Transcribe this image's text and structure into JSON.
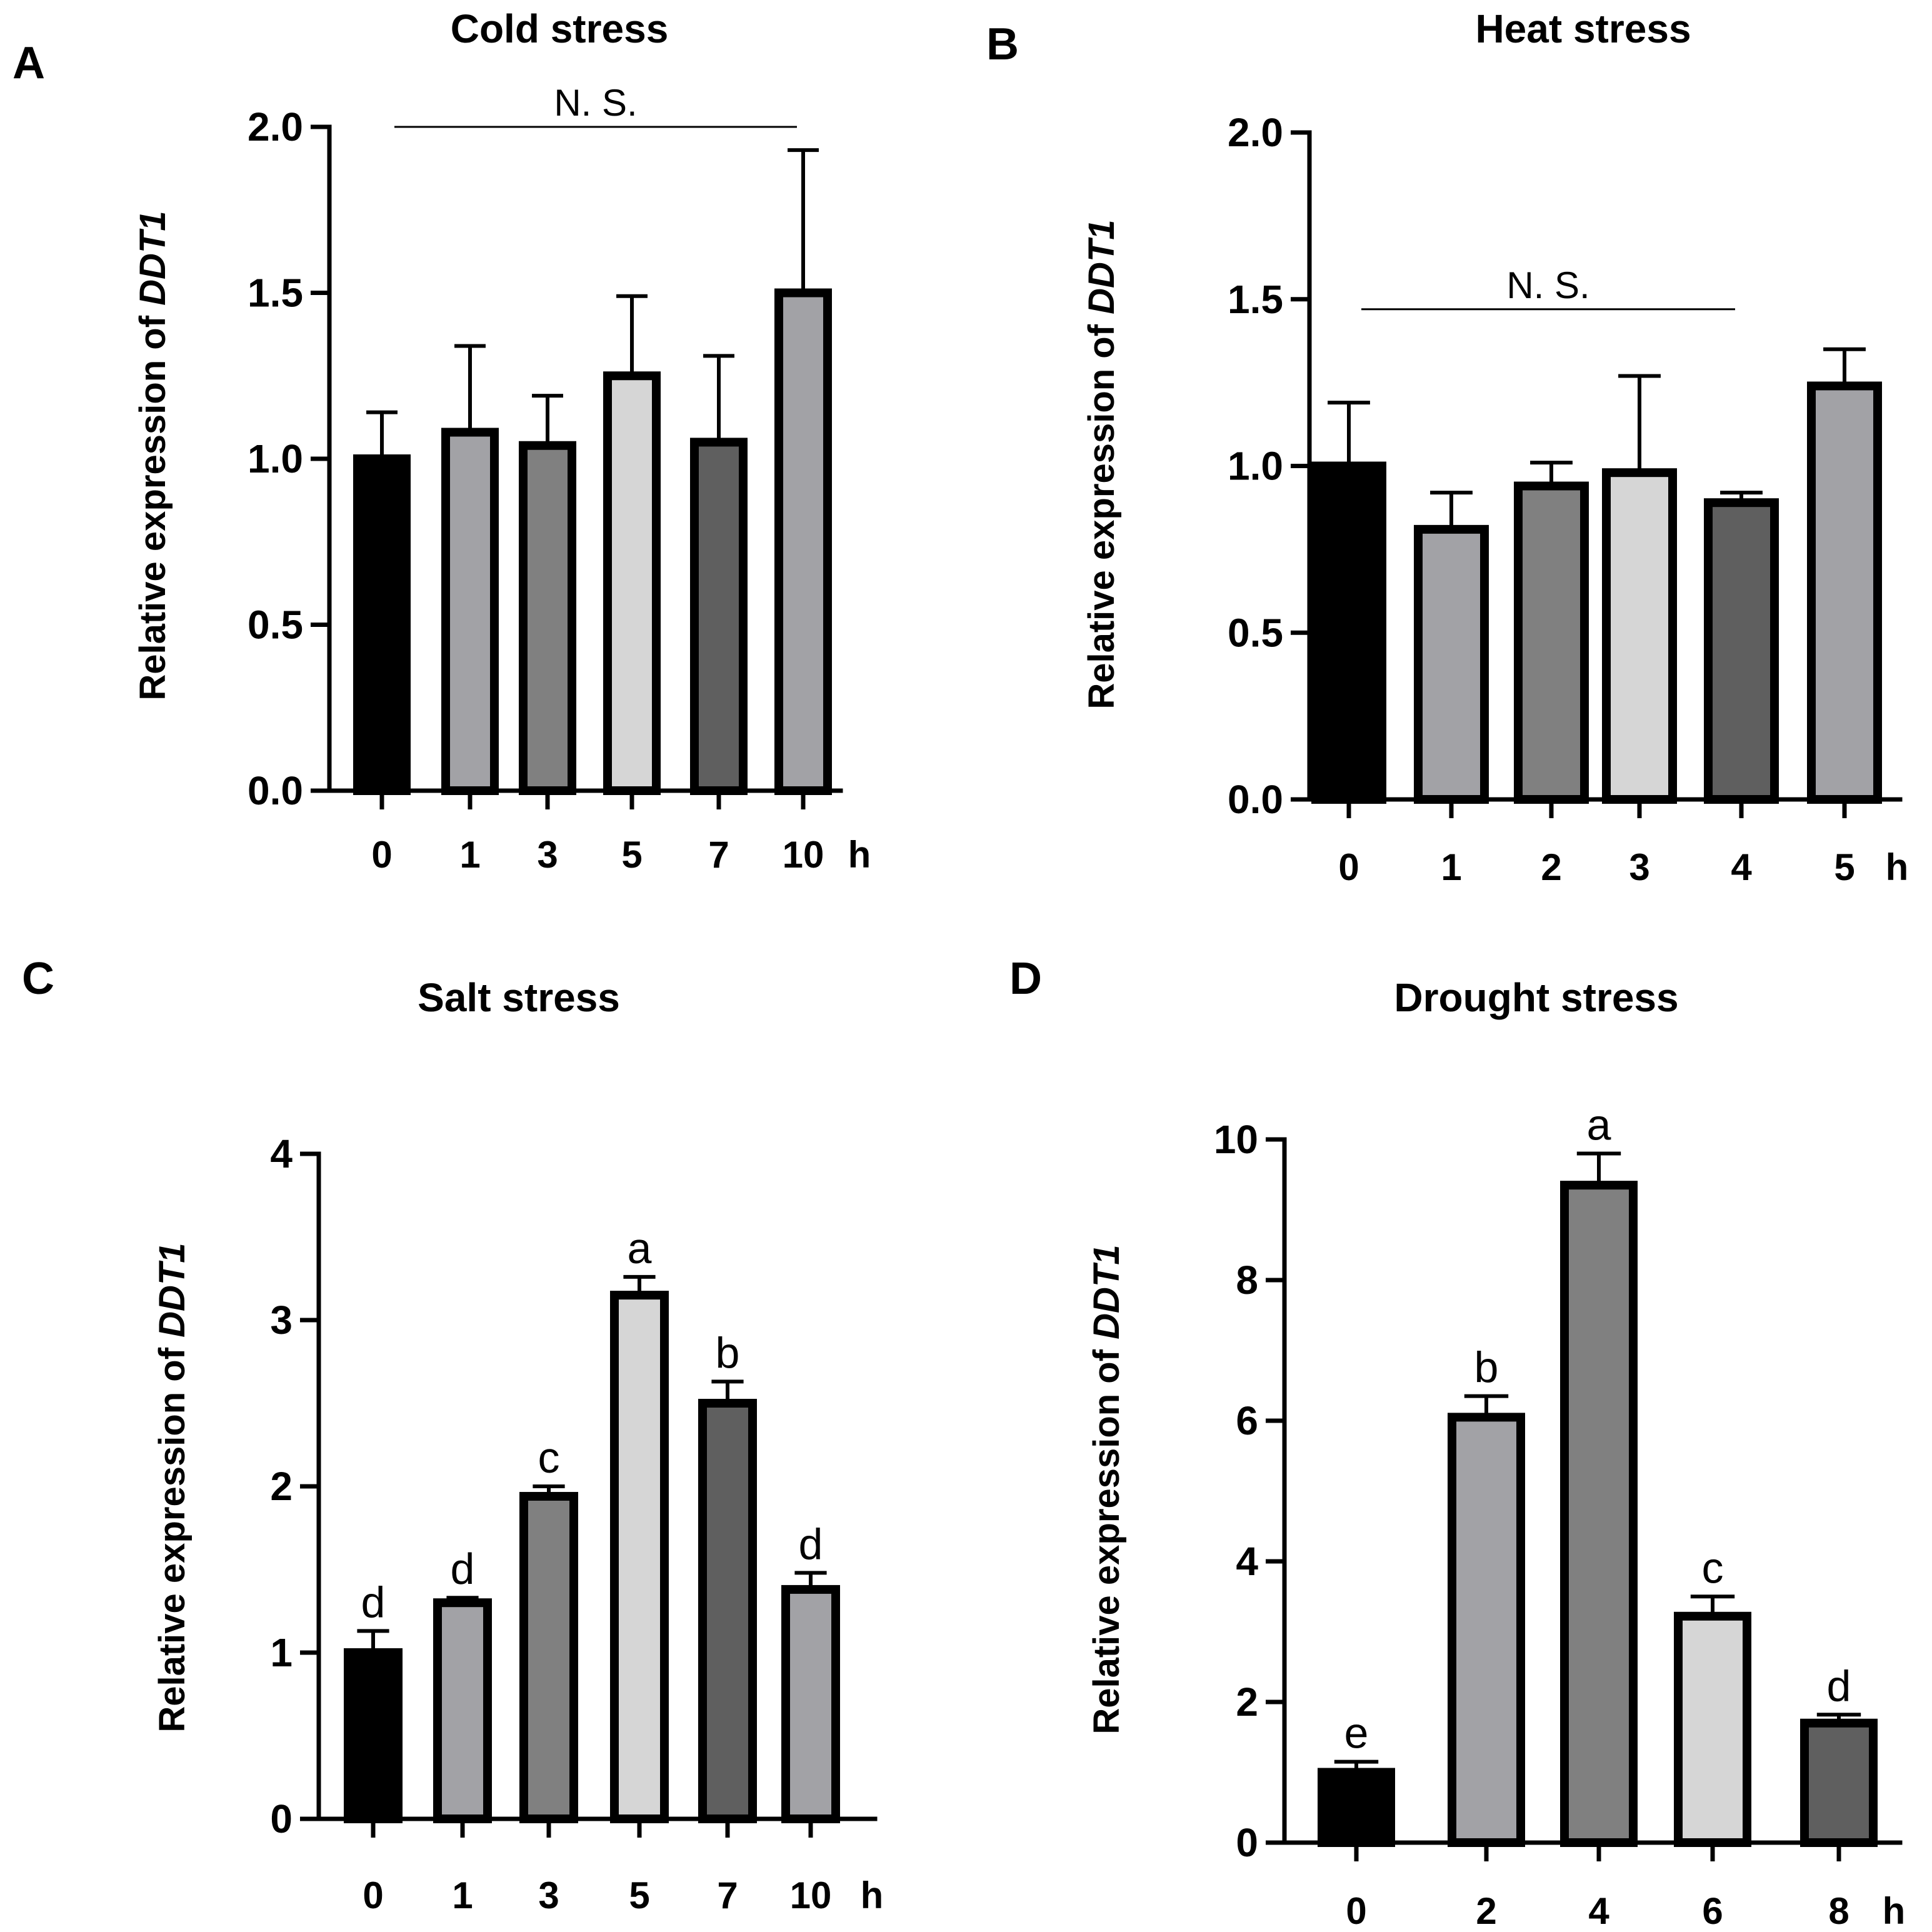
{
  "figure": {
    "gene": "DDT1",
    "ylabel_prefix": "Relative expression of ",
    "unit": "h"
  },
  "chart_data": [
    {
      "id": "A",
      "letter": "A",
      "type": "bar",
      "title": "Cold stress",
      "xlabel": "h",
      "ylabel": "Relative expression of DDT1",
      "ylim": [
        0,
        2.0
      ],
      "yticks": [
        "0.0",
        "0.5",
        "1.0",
        "1.5",
        "2.0"
      ],
      "categories": [
        "0",
        "1",
        "3",
        "5",
        "7",
        "10"
      ],
      "values": [
        1.0,
        1.08,
        1.04,
        1.25,
        1.05,
        1.5
      ],
      "errors": [
        0.14,
        0.26,
        0.15,
        0.24,
        0.26,
        0.43
      ],
      "colors": [
        "#000000",
        "#a2a2a6",
        "#808080",
        "#d6d6d6",
        "#5f5f5f",
        "#a2a2a6"
      ],
      "significance": "N. S.",
      "sig_level": 2.0,
      "sig_span": [
        0,
        5
      ],
      "letters": []
    },
    {
      "id": "B",
      "letter": "B",
      "type": "bar",
      "title": "Heat stress",
      "xlabel": "h",
      "ylabel": "Relative expression of DDT1",
      "ylim": [
        0,
        2.0
      ],
      "yticks": [
        "0.0",
        "0.5",
        "1.0",
        "1.5",
        "2.0"
      ],
      "categories": [
        "0",
        "1",
        "2",
        "3",
        "4",
        "5"
      ],
      "values": [
        1.0,
        0.81,
        0.94,
        0.98,
        0.89,
        1.24
      ],
      "errors": [
        0.19,
        0.11,
        0.07,
        0.29,
        0.03,
        0.11
      ],
      "colors": [
        "#000000",
        "#a2a2a6",
        "#808080",
        "#d6d6d6",
        "#5f5f5f",
        "#a2a2a6"
      ],
      "significance": "N. S.",
      "sig_level": 1.47,
      "sig_span": [
        0,
        4
      ],
      "letters": []
    },
    {
      "id": "C",
      "letter": "C",
      "type": "bar",
      "title": "Salt stress",
      "xlabel": "h",
      "ylabel": "Relative expression of DDT1",
      "ylim": [
        0,
        4
      ],
      "yticks": [
        "0",
        "1",
        "2",
        "3",
        "4"
      ],
      "categories": [
        "0",
        "1",
        "3",
        "5",
        "7",
        "10"
      ],
      "values": [
        1.0,
        1.3,
        1.94,
        3.15,
        2.5,
        1.38
      ],
      "errors": [
        0.13,
        0.03,
        0.06,
        0.11,
        0.13,
        0.1
      ],
      "colors": [
        "#000000",
        "#a2a2a6",
        "#808080",
        "#d6d6d6",
        "#5f5f5f",
        "#a2a2a6"
      ],
      "significance": "",
      "letters": [
        "d",
        "d",
        "c",
        "a",
        "b",
        "d"
      ]
    },
    {
      "id": "D",
      "letter": "D",
      "type": "bar",
      "title": "Drought stress",
      "xlabel": "h",
      "ylabel": "Relative expression of DDT1",
      "ylim": [
        0,
        10
      ],
      "yticks": [
        "0",
        "2",
        "4",
        "6",
        "8",
        "10"
      ],
      "categories": [
        "0",
        "2",
        "4",
        "6",
        "8"
      ],
      "values": [
        1.0,
        6.05,
        9.35,
        3.22,
        1.7
      ],
      "errors": [
        0.15,
        0.3,
        0.45,
        0.28,
        0.12
      ],
      "colors": [
        "#000000",
        "#a2a2a6",
        "#808080",
        "#d6d6d6",
        "#5f5f5f"
      ],
      "significance": "",
      "letters": [
        "e",
        "b",
        "a",
        "c",
        "d"
      ]
    }
  ]
}
